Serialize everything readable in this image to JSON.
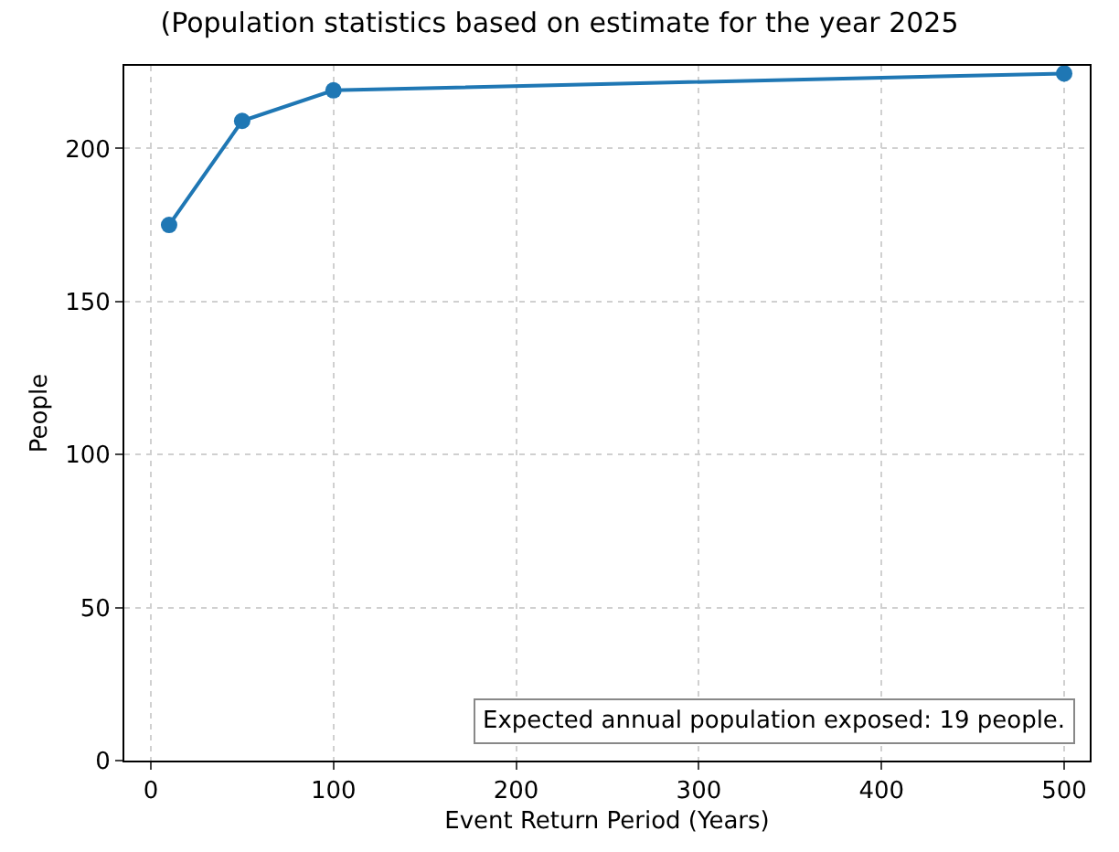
{
  "chart_data": {
    "type": "line",
    "title": "(Population statistics based on estimate for the year 2025",
    "xlabel": "Event Return Period (Years)",
    "ylabel": "People",
    "x": [
      10,
      50,
      100,
      500
    ],
    "series": [
      {
        "color": "#1f77b4",
        "values": [
          175,
          209,
          219,
          224.5
        ]
      }
    ],
    "xlim": [
      -14.5,
      514
    ],
    "ylim": [
      0,
      227
    ],
    "xticks": [
      0,
      100,
      200,
      300,
      400,
      500
    ],
    "yticks": [
      0,
      50,
      100,
      150,
      200
    ],
    "grid": true,
    "marker": "circle",
    "line_style": "solid",
    "annotations": [
      "Expected annual population exposed: 19 people."
    ]
  }
}
